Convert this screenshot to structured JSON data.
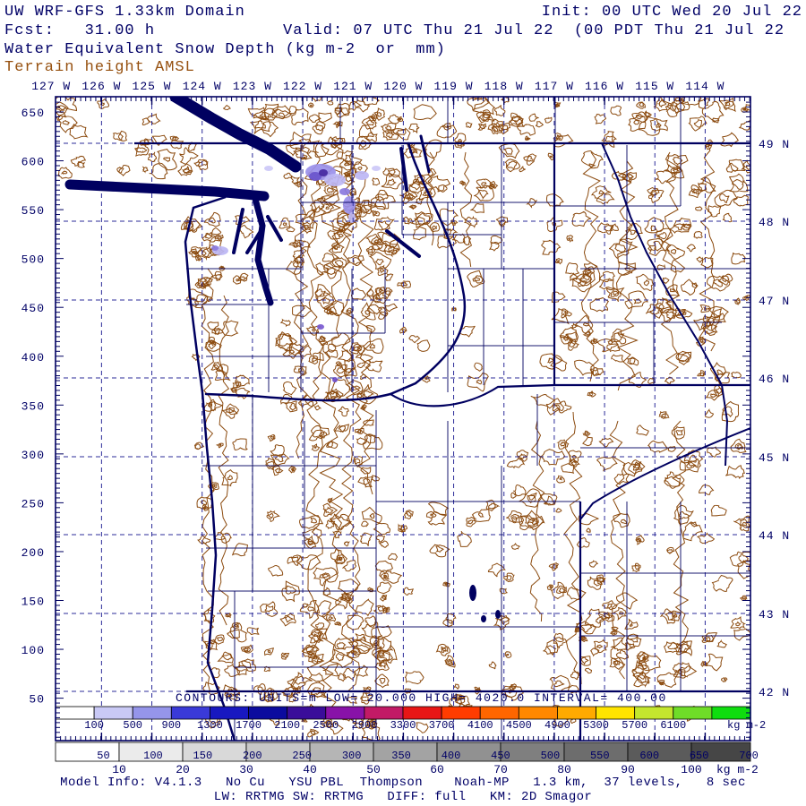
{
  "header": {
    "title": "UW WRF-GFS 1.33km Domain",
    "init": "Init: 00 UTC Wed 20 Jul 22",
    "fcst": "Fcst:   31.00 h",
    "valid": "Valid: 07 UTC Thu 21 Jul 22  (00 PDT Thu 21 Jul 22  )",
    "field": "Water Equivalent Snow Depth (kg m-2  or  mm)",
    "overlay": "Terrain height AMSL"
  },
  "axes": {
    "top_labels": [
      "127 W",
      "126 W",
      "125 W",
      "124 W",
      "123 W",
      "122 W",
      "121 W",
      "120 W",
      "119 W",
      "118 W",
      "117 W",
      "116 W",
      "115 W",
      "114 W"
    ],
    "right_labels": [
      "49 N",
      "48 N",
      "47 N",
      "46 N",
      "45 N",
      "44 N",
      "43 N",
      "42 N"
    ],
    "left_labels": [
      "650",
      "600",
      "550",
      "500",
      "450",
      "400",
      "350",
      "300",
      "250",
      "200",
      "150",
      "100",
      "50"
    ]
  },
  "map_note": "CONTOURS: UNITS=m LOW= 20.000 HIGH= 4020.0 INTERVAL= 400.00",
  "colorbar_snow": {
    "labels": [
      "100",
      "500",
      "900",
      "1300",
      "1700",
      "2100",
      "2500",
      "2900",
      "3300",
      "3700",
      "4100",
      "4500",
      "4900",
      "5300",
      "5700",
      "6100"
    ],
    "unit": "kg m-2",
    "colors": [
      "#ffffff",
      "#c9c9f5",
      "#9595ea",
      "#3a3ad8",
      "#1818c0",
      "#0b0b9e",
      "#3a0d9a",
      "#8812a8",
      "#c21a66",
      "#e81616",
      "#ff3c00",
      "#ff6600",
      "#ff8800",
      "#ffaa00",
      "#ffe400",
      "#c4e62e",
      "#6fdd28",
      "#0fdd0f"
    ],
    "title_hint": "Water equivalent snow depth scale"
  },
  "colorbar_gray": {
    "bar_labels": [
      "50",
      "100",
      "150",
      "200",
      "250",
      "300",
      "350",
      "400",
      "450",
      "500",
      "550",
      "600",
      "650",
      "700"
    ],
    "scale_labels": [
      "10",
      "20",
      "30",
      "40",
      "50",
      "60",
      "70",
      "80",
      "90",
      "100"
    ],
    "unit": "kg m-2",
    "colors": [
      "#ffffff",
      "#ebebeb",
      "#d9d9d9",
      "#c7c7c7",
      "#b5b5b5",
      "#a3a3a3",
      "#919191",
      "#7f7f7f",
      "#6d6d6d",
      "#5b5b5b",
      "#464646"
    ],
    "title_hint": "Terrain height / grayscale snow scale"
  },
  "footer": {
    "line1": "Model Info: V4.1.3   No Cu   YSU PBL  Thompson    Noah-MP   1.3 km,  37 levels,   8 sec",
    "line2": "LW: RRTMG SW: RRTMG   DIFF: full   KM: 2D Smagor"
  },
  "colors": {
    "navy": "#000066",
    "border_navy": "#000060",
    "brown": "#8b4a0e",
    "brown_label": "#96500f",
    "graticule": "#2b2b99",
    "snow_patch_light": "#bcb6f4",
    "snow_patch_mid": "#9a90ea",
    "snow_patch_dark": "#45289f"
  }
}
